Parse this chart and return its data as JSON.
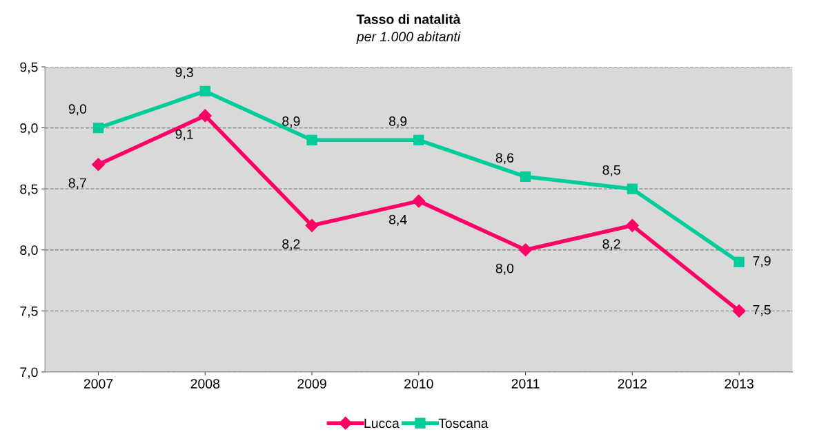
{
  "chart_data": {
    "type": "line",
    "title": "Tasso di natalità",
    "subtitle": "per 1.000 abitanti",
    "categories": [
      "2007",
      "2008",
      "2009",
      "2010",
      "2011",
      "2012",
      "2013"
    ],
    "series": [
      {
        "name": "Lucca",
        "color": "#ff0066",
        "marker": "diamond",
        "values": [
          8.7,
          9.1,
          8.2,
          8.4,
          8.0,
          8.2,
          7.5
        ],
        "value_labels": [
          "8,7",
          "9,1",
          "8,2",
          "8,4",
          "8,0",
          "8,2",
          "7,5"
        ]
      },
      {
        "name": "Toscana",
        "color": "#00cc99",
        "marker": "square",
        "values": [
          9.0,
          9.3,
          8.9,
          8.9,
          8.6,
          8.5,
          7.9
        ],
        "value_labels": [
          "9,0",
          "9,3",
          "8,9",
          "8,9",
          "8,6",
          "8,5",
          "7,9"
        ]
      }
    ],
    "ylim": [
      7.0,
      9.5
    ],
    "yticks": [
      {
        "value": 7.0,
        "label": "7,0"
      },
      {
        "value": 7.5,
        "label": "7,5"
      },
      {
        "value": 8.0,
        "label": "8,0"
      },
      {
        "value": 8.5,
        "label": "8,5"
      },
      {
        "value": 9.0,
        "label": "9,0"
      },
      {
        "value": 9.5,
        "label": "9,5"
      }
    ],
    "grid": "y",
    "legend": "bottom",
    "line_style": "solid"
  }
}
